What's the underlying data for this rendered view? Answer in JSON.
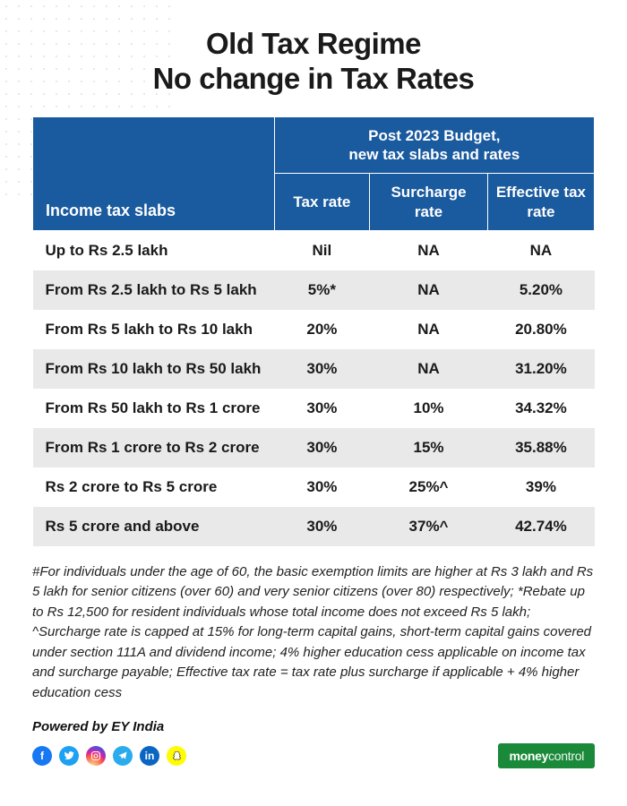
{
  "title_line1": "Old Tax Regime",
  "title_line2": "No change in Tax Rates",
  "table": {
    "header_slabs": "Income tax slabs",
    "header_group": "Post 2023 Budget,\nnew tax slabs and rates",
    "header_tax_rate": "Tax rate",
    "header_surcharge": "Surcharge rate",
    "header_effective": "Effective tax rate",
    "col_widths_pct": [
      43,
      17,
      21,
      19
    ],
    "header_bg": "#1a5a9e",
    "header_fg": "#ffffff",
    "row_bg_odd": "#ffffff",
    "row_bg_even": "#e9e9e9",
    "rows": [
      {
        "slab": "Up to Rs 2.5 lakh",
        "tax_rate": "Nil",
        "surcharge": "NA",
        "effective": "NA"
      },
      {
        "slab": "From Rs 2.5 lakh to Rs 5 lakh",
        "tax_rate": "5%*",
        "surcharge": "NA",
        "effective": "5.20%"
      },
      {
        "slab": "From Rs 5 lakh to Rs 10 lakh",
        "tax_rate": "20%",
        "surcharge": "NA",
        "effective": "20.80%"
      },
      {
        "slab": "From Rs 10 lakh to Rs 50 lakh",
        "tax_rate": "30%",
        "surcharge": "NA",
        "effective": "31.20%"
      },
      {
        "slab": "From Rs 50 lakh to Rs 1 crore",
        "tax_rate": "30%",
        "surcharge": "10%",
        "effective": "34.32%"
      },
      {
        "slab": "From Rs 1 crore to Rs 2 crore",
        "tax_rate": "30%",
        "surcharge": "15%",
        "effective": "35.88%"
      },
      {
        "slab": "Rs 2 crore to Rs 5 crore",
        "tax_rate": "30%",
        "surcharge": "25%^",
        "effective": "39%"
      },
      {
        "slab": "Rs 5 crore and above",
        "tax_rate": "30%",
        "surcharge": "37%^",
        "effective": "42.74%"
      }
    ]
  },
  "footnote": "#For individuals under the age of 60, the basic exemption limits are higher at Rs 3 lakh and Rs 5 lakh for senior citizens (over 60) and very senior citizens (over 80) respectively; *Rebate up to Rs 12,500 for resident individuals whose total income does not exceed Rs 5 lakh;  ^Surcharge rate is capped at 15% for long-term capital gains, short-term capital gains covered under section 111A and dividend income; 4% higher education cess applicable on income tax and surcharge payable; Effective tax rate = tax rate plus surcharge if applicable + 4% higher education cess",
  "powered_by": "Powered by EY India",
  "social": {
    "fb": "f",
    "tw": "t",
    "ig": "ig",
    "tg": "tg",
    "li": "in",
    "sc": "sc"
  },
  "brand_bold": "money",
  "brand_light": "control"
}
